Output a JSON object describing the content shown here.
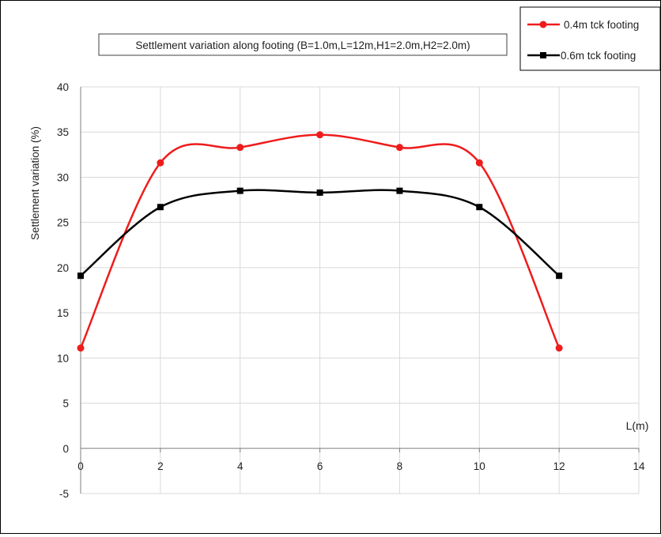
{
  "chart_data": {
    "type": "line",
    "title": "Settlement variation along footing (B=1.0m,L=12m,H1=2.0m,H2=2.0m)",
    "xlabel": "L(m)",
    "ylabel": "Settlement variation (%)",
    "xlim": [
      0,
      14
    ],
    "ylim": [
      -5,
      40
    ],
    "x_ticks": [
      0,
      2,
      4,
      6,
      8,
      10,
      12,
      14
    ],
    "y_ticks": [
      -5,
      0,
      5,
      10,
      15,
      20,
      25,
      30,
      35,
      40
    ],
    "grid": true,
    "smooth": true,
    "legend_position": "top-right",
    "series": [
      {
        "name": "0.4m tck footing",
        "color": "#ee1c1c",
        "x": [
          0,
          2,
          4,
          6,
          8,
          10,
          12
        ],
        "values": [
          11.1,
          31.6,
          33.3,
          34.7,
          33.3,
          31.6,
          11.1
        ]
      },
      {
        "name": "0.6m tck footing",
        "color": "#000000",
        "x": [
          0,
          2,
          4,
          6,
          8,
          10,
          12
        ],
        "values": [
          19.1,
          26.7,
          28.5,
          28.3,
          28.5,
          26.7,
          19.1
        ]
      }
    ]
  }
}
